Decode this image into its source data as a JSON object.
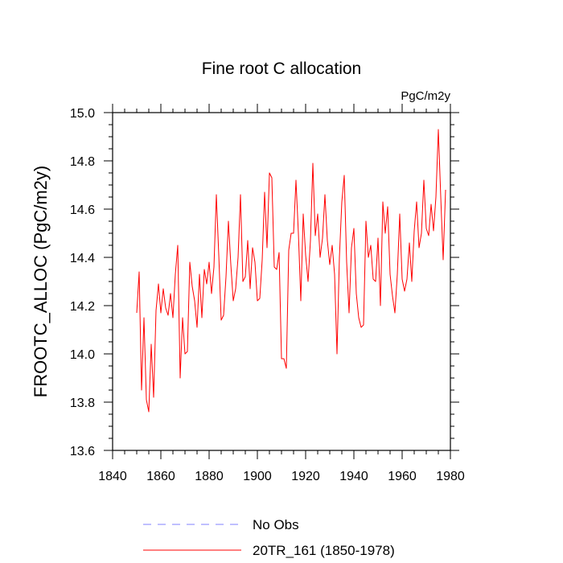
{
  "chart_data": {
    "type": "line",
    "title": "Fine root C allocation",
    "units": "PgC/m2y",
    "xlabel": "",
    "ylabel": "FROOTC_ALLOC  (PgC/m2y)",
    "xlim": [
      1840,
      1980
    ],
    "ylim": [
      13.6,
      15.0
    ],
    "xticks": [
      1840,
      1860,
      1880,
      1900,
      1920,
      1940,
      1960,
      1980
    ],
    "yticks": [
      13.6,
      13.8,
      14.0,
      14.2,
      14.4,
      14.6,
      14.8,
      15.0
    ],
    "xtick_labels": [
      "1840",
      "1860",
      "1880",
      "1900",
      "1920",
      "1940",
      "1960",
      "1980"
    ],
    "ytick_labels": [
      "13.6",
      "13.8",
      "14.0",
      "14.2",
      "14.4",
      "14.6",
      "14.8",
      "15.0"
    ],
    "legend": [
      {
        "name": "No Obs",
        "color": "#8080ff",
        "dash": "dashed"
      },
      {
        "name": "20TR_161 (1850-1978)",
        "color": "#ff0000",
        "dash": "solid"
      }
    ],
    "series": [
      {
        "name": "20TR_161 (1850-1978)",
        "color": "#ff0000",
        "x_start": 1850,
        "values": [
          14.17,
          14.34,
          13.85,
          14.15,
          13.81,
          13.76,
          14.04,
          13.82,
          14.18,
          14.29,
          14.17,
          14.27,
          14.19,
          14.16,
          14.25,
          14.15,
          14.33,
          14.45,
          13.9,
          14.15,
          14.0,
          14.01,
          14.38,
          14.28,
          14.22,
          14.11,
          14.33,
          14.15,
          14.35,
          14.29,
          14.38,
          14.25,
          14.36,
          14.66,
          14.41,
          14.14,
          14.16,
          14.32,
          14.55,
          14.37,
          14.22,
          14.27,
          14.4,
          14.66,
          14.3,
          14.32,
          14.47,
          14.27,
          14.44,
          14.38,
          14.22,
          14.23,
          14.39,
          14.67,
          14.44,
          14.75,
          14.73,
          14.36,
          14.35,
          14.42,
          13.98,
          13.98,
          13.94,
          14.43,
          14.5,
          14.5,
          14.72,
          14.5,
          14.22,
          14.58,
          14.41,
          14.3,
          14.47,
          14.79,
          14.49,
          14.58,
          14.4,
          14.48,
          14.66,
          14.47,
          14.37,
          14.45,
          14.33,
          14.0,
          14.4,
          14.63,
          14.74,
          14.38,
          14.17,
          14.44,
          14.52,
          14.25,
          14.15,
          14.11,
          14.12,
          14.55,
          14.4,
          14.45,
          14.31,
          14.3,
          14.48,
          14.2,
          14.63,
          14.5,
          14.61,
          14.33,
          14.24,
          14.17,
          14.33,
          14.58,
          14.31,
          14.26,
          14.31,
          14.46,
          14.3,
          14.51,
          14.63,
          14.44,
          14.5,
          14.72,
          14.52,
          14.49,
          14.62,
          14.51,
          14.65,
          14.93,
          14.65,
          14.39,
          14.68
        ]
      }
    ]
  }
}
